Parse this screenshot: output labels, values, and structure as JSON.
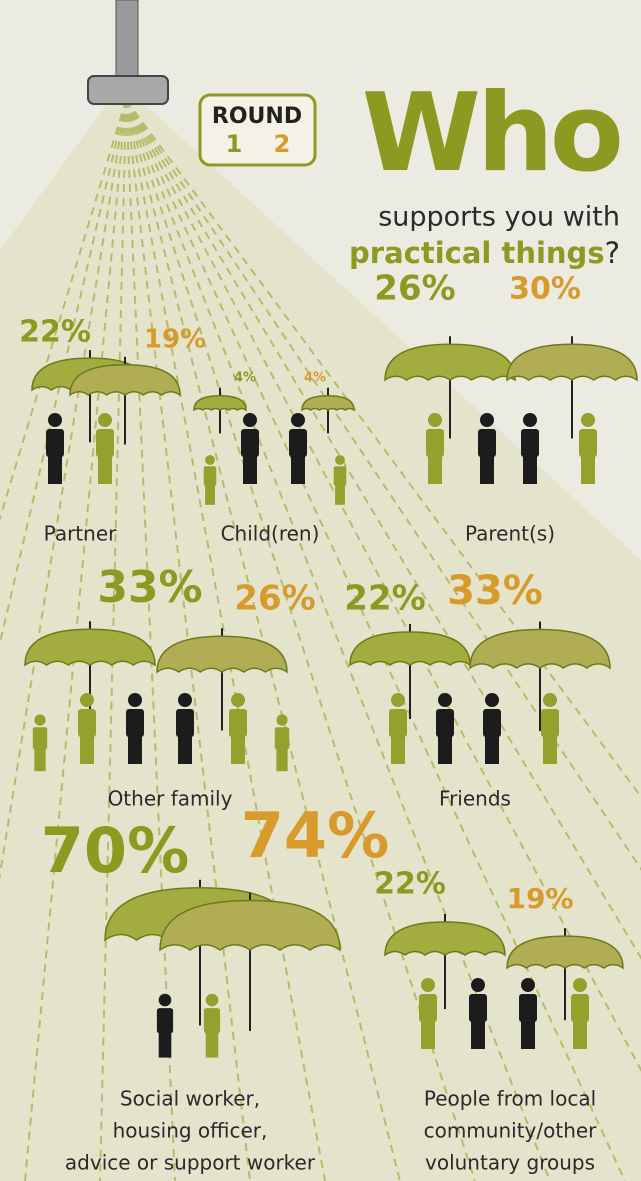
{
  "header": {
    "round_label": "ROUND",
    "round_1": "1",
    "round_2": "2",
    "title": "Who",
    "subtitle": "supports you with",
    "highlight": "practical things",
    "question_mark": "?"
  },
  "groups": [
    {
      "label": [
        "Partner"
      ],
      "round_1": "22%",
      "round_2": "19%"
    },
    {
      "label": [
        "Child(ren)"
      ],
      "round_1": "4%",
      "round_2": "4%"
    },
    {
      "label": [
        "Parent(s)"
      ],
      "round_1": "26%",
      "round_2": "30%"
    },
    {
      "label": [
        "Other family"
      ],
      "round_1": "33%",
      "round_2": "26%"
    },
    {
      "label": [
        "Friends"
      ],
      "round_1": "22%",
      "round_2": "33%"
    },
    {
      "label": [
        "Social worker,",
        "housing officer,",
        "advice or support worker"
      ],
      "round_1": "70%",
      "round_2": "74%"
    },
    {
      "label": [
        "People from local",
        "community/other",
        "voluntary groups"
      ],
      "round_1": "22%",
      "round_2": "19%"
    }
  ]
}
